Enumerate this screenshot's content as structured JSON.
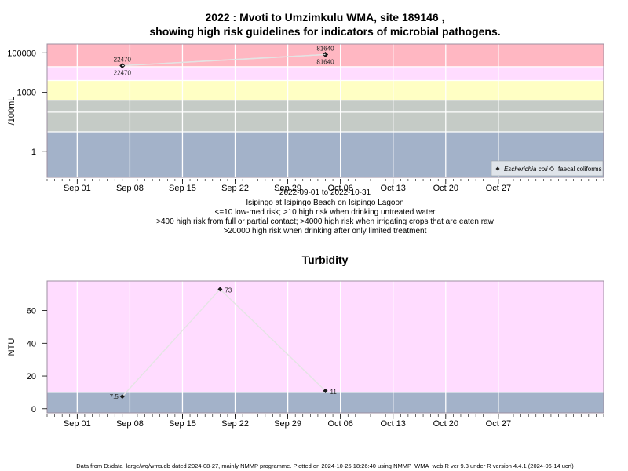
{
  "header": {
    "title_line1": "2022 : Mvoti to Umzimkulu WMA, site 189146 ,",
    "title_line2": "showing high risk guidelines for indicators of microbial pathogens."
  },
  "chart_data": [
    {
      "type": "line",
      "scale": "log",
      "ylabel": "/100mL",
      "ylim": [
        0.05,
        280000
      ],
      "yticks": [
        {
          "value": 1,
          "label": "1"
        },
        {
          "value": 1000,
          "label": "1000"
        },
        {
          "value": 100000,
          "label": "100000"
        }
      ],
      "xlim": [
        "2022-08-28",
        "2022-11-10"
      ],
      "xticks": [
        {
          "date": "2022-09-01",
          "label": "Sep 01"
        },
        {
          "date": "2022-09-08",
          "label": "Sep 08"
        },
        {
          "date": "2022-09-15",
          "label": "Sep 15"
        },
        {
          "date": "2022-09-22",
          "label": "Sep 22"
        },
        {
          "date": "2022-09-29",
          "label": "Sep 29"
        },
        {
          "date": "2022-10-06",
          "label": "Oct 06"
        },
        {
          "date": "2022-10-13",
          "label": "Oct 13"
        },
        {
          "date": "2022-10-20",
          "label": "Oct 20"
        },
        {
          "date": "2022-10-27",
          "label": "Oct 27"
        }
      ],
      "bands": [
        {
          "from": 0.05,
          "to": 10,
          "color": "#a3b2c9"
        },
        {
          "from": 10,
          "to": 100,
          "color": "#c5cbc6"
        },
        {
          "from": 100,
          "to": 400,
          "color": "#c5cbc6"
        },
        {
          "from": 400,
          "to": 4000,
          "color": "#ffffc4"
        },
        {
          "from": 4000,
          "to": 20000,
          "color": "#ffdcff"
        },
        {
          "from": 20000,
          "to": 280000,
          "color": "#ffb7c2"
        }
      ],
      "series": [
        {
          "name": "Escherichia coli",
          "marker": "filled",
          "points": [
            {
              "x": "2022-09-07",
              "y": 22470,
              "label": "22470"
            },
            {
              "x": "2022-10-04",
              "y": 81640,
              "label": "81640"
            }
          ]
        },
        {
          "name": "faecal coliforms",
          "marker": "open",
          "points": [
            {
              "x": "2022-09-07",
              "y": 22470,
              "label": "22470"
            },
            {
              "x": "2022-10-04",
              "y": 81640,
              "label": "81640"
            }
          ]
        }
      ],
      "legend_position": "bottom-right",
      "grid": true,
      "notes": [
        "2022-09-01 to 2022-10-31",
        "Isipingo at Isipingo Beach on Isipingo Lagoon",
        "<=10 low-med risk; >10 high risk when drinking untreated water",
        ">400 high risk from full or partial contact; >4000 high risk when irrigating crops that are eaten raw",
        ">20000 high risk when drinking after only limited treatment"
      ]
    },
    {
      "type": "line",
      "title": "Turbidity",
      "ylabel": "NTU",
      "ylim": [
        -2.5,
        78
      ],
      "yticks": [
        {
          "value": 0,
          "label": "0"
        },
        {
          "value": 20,
          "label": "20"
        },
        {
          "value": 40,
          "label": "40"
        },
        {
          "value": 60,
          "label": "60"
        }
      ],
      "xlim": [
        "2022-08-28",
        "2022-11-10"
      ],
      "xticks": [
        {
          "date": "2022-09-01",
          "label": "Sep 01"
        },
        {
          "date": "2022-09-08",
          "label": "Sep 08"
        },
        {
          "date": "2022-09-15",
          "label": "Sep 15"
        },
        {
          "date": "2022-09-22",
          "label": "Sep 22"
        },
        {
          "date": "2022-09-29",
          "label": "Sep 29"
        },
        {
          "date": "2022-10-06",
          "label": "Oct 06"
        },
        {
          "date": "2022-10-13",
          "label": "Oct 13"
        },
        {
          "date": "2022-10-20",
          "label": "Oct 20"
        },
        {
          "date": "2022-10-27",
          "label": "Oct 27"
        }
      ],
      "bands": [
        {
          "from": -2.5,
          "to": 10,
          "color": "#a3b2c9"
        },
        {
          "from": 10,
          "to": 78,
          "color": "#ffdcff"
        }
      ],
      "series": [
        {
          "points": [
            {
              "x": "2022-09-07",
              "y": 7.5,
              "label": "7.5"
            },
            {
              "x": "2022-09-20",
              "y": 73,
              "label": "73"
            },
            {
              "x": "2022-10-04",
              "y": 11,
              "label": "11"
            }
          ]
        }
      ],
      "grid": true
    }
  ],
  "footer": {
    "text": "Data from D:/data_large/wq/wms.db dated 2024-08-27, mainly NMMP programme. Plotted on 2024-10-25 18:26:40 using NMMP_WMA_web.R ver 9.3 under R version 4.4.1 (2024-06-14 ucrt)"
  }
}
